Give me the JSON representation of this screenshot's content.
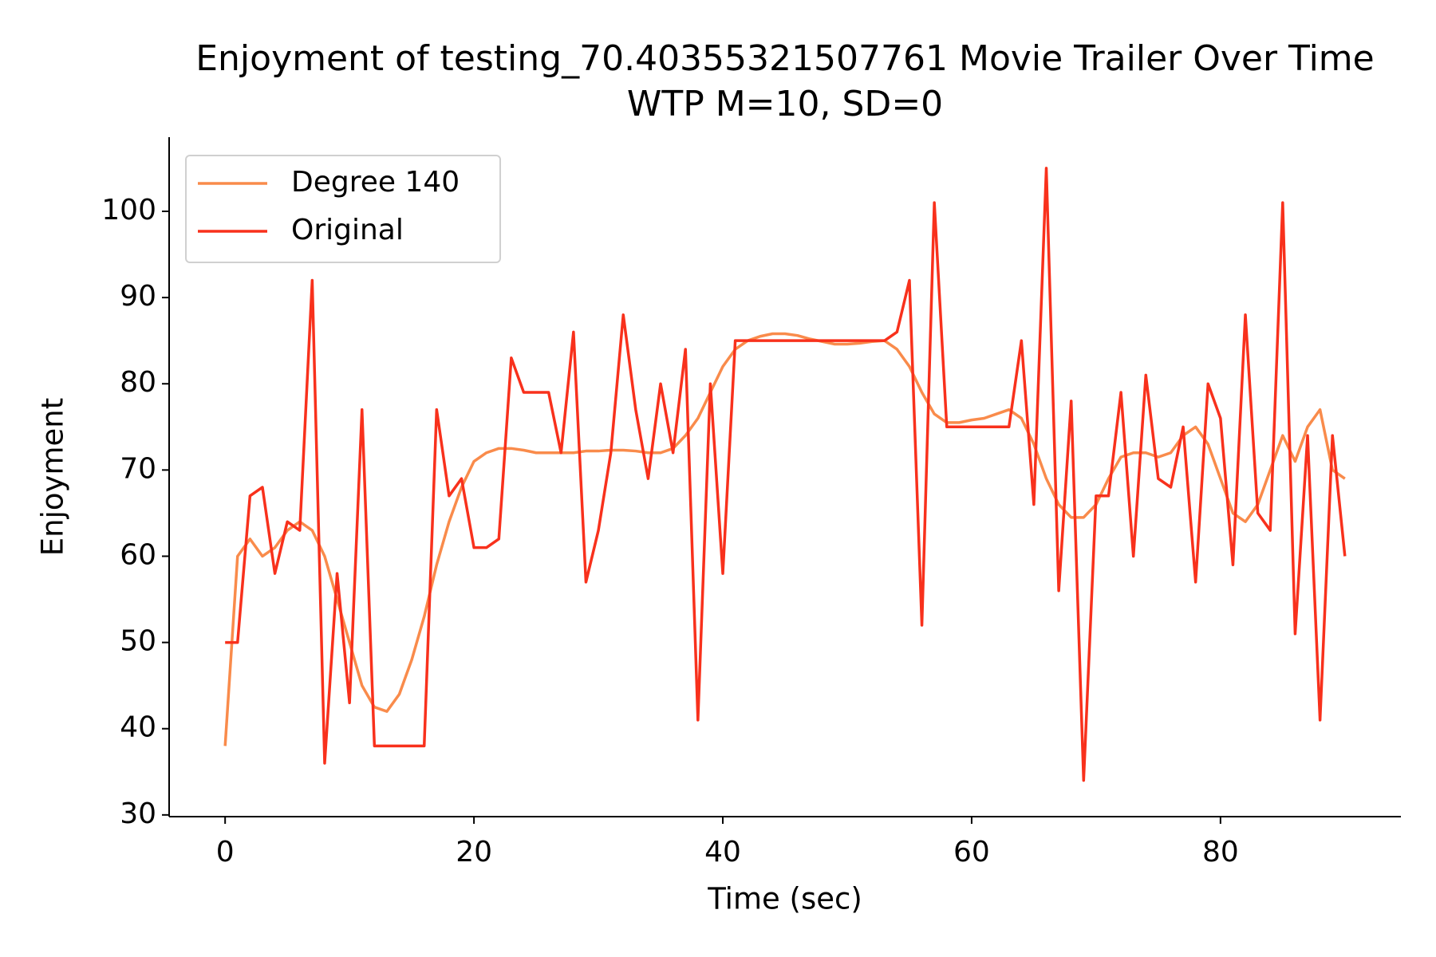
{
  "chart_data": {
    "type": "line",
    "title": "Enjoyment of testing_70.40355321507761 Movie Trailer Over Time",
    "subtitle": "WTP M=10, SD=0",
    "x_label": "Time (sec)",
    "y_label": "Enjoyment",
    "x": [
      0,
      1,
      2,
      3,
      4,
      5,
      6,
      7,
      8,
      9,
      10,
      11,
      12,
      13,
      14,
      15,
      16,
      17,
      18,
      19,
      20,
      21,
      22,
      23,
      24,
      25,
      26,
      27,
      28,
      29,
      30,
      31,
      32,
      33,
      34,
      35,
      36,
      37,
      38,
      39,
      40,
      41,
      42,
      43,
      44,
      45,
      46,
      47,
      48,
      49,
      50,
      51,
      52,
      53,
      54,
      55,
      56,
      57,
      58,
      59,
      60,
      61,
      62,
      63,
      64,
      65,
      66,
      67,
      68,
      69,
      70,
      71,
      72,
      73,
      74,
      75,
      76,
      77,
      78,
      79,
      80,
      81,
      82,
      83,
      84,
      85,
      86,
      87,
      88,
      89,
      90
    ],
    "series": [
      {
        "name": "Degree 140",
        "color": "#f98b4b",
        "values": [
          38,
          60,
          62,
          60,
          61,
          63,
          64,
          63,
          60,
          55,
          50,
          45,
          42.5,
          42,
          44,
          48,
          53,
          59,
          64,
          68,
          71,
          72,
          72.5,
          72.5,
          72.3,
          72,
          72,
          72,
          72,
          72.2,
          72.2,
          72.3,
          72.3,
          72.2,
          72,
          72,
          72.5,
          74,
          76,
          79,
          82,
          84,
          85,
          85.5,
          85.8,
          85.8,
          85.6,
          85.2,
          84.9,
          84.6,
          84.6,
          84.7,
          84.9,
          85,
          84,
          82,
          79,
          76.5,
          75.5,
          75.5,
          75.8,
          76,
          76.5,
          77,
          76,
          73,
          69,
          66,
          64.5,
          64.5,
          66,
          69,
          71.5,
          72,
          72,
          71.5,
          72,
          74,
          75,
          73,
          69,
          65,
          64,
          66,
          70,
          74,
          71,
          75,
          77,
          70,
          69
        ]
      },
      {
        "name": "Original",
        "color": "#f8311c",
        "values": [
          50,
          50,
          67,
          68,
          58,
          64,
          63,
          92,
          36,
          58,
          43,
          77,
          38,
          38,
          38,
          38,
          38,
          77,
          67,
          69,
          61,
          61,
          62,
          83,
          79,
          79,
          79,
          72,
          86,
          57,
          63,
          72,
          88,
          77,
          69,
          80,
          72,
          84,
          41,
          80,
          58,
          85,
          85,
          85,
          85,
          85,
          85,
          85,
          85,
          85,
          85,
          85,
          85,
          85,
          86,
          92,
          52,
          101,
          75,
          75,
          75,
          75,
          75,
          75,
          85,
          66,
          105,
          56,
          78,
          34,
          67,
          67,
          79,
          60,
          81,
          69,
          68,
          75,
          57,
          80,
          76,
          59,
          88,
          65,
          63,
          101,
          51,
          74,
          41,
          74,
          60
        ]
      }
    ],
    "xlim": [
      -4.5,
      94.5
    ],
    "ylim": [
      29.8,
      108.6
    ],
    "xticks": [
      0,
      20,
      40,
      60,
      80
    ],
    "yticks": [
      30,
      40,
      50,
      60,
      70,
      80,
      90,
      100
    ],
    "legend": "upper left"
  }
}
